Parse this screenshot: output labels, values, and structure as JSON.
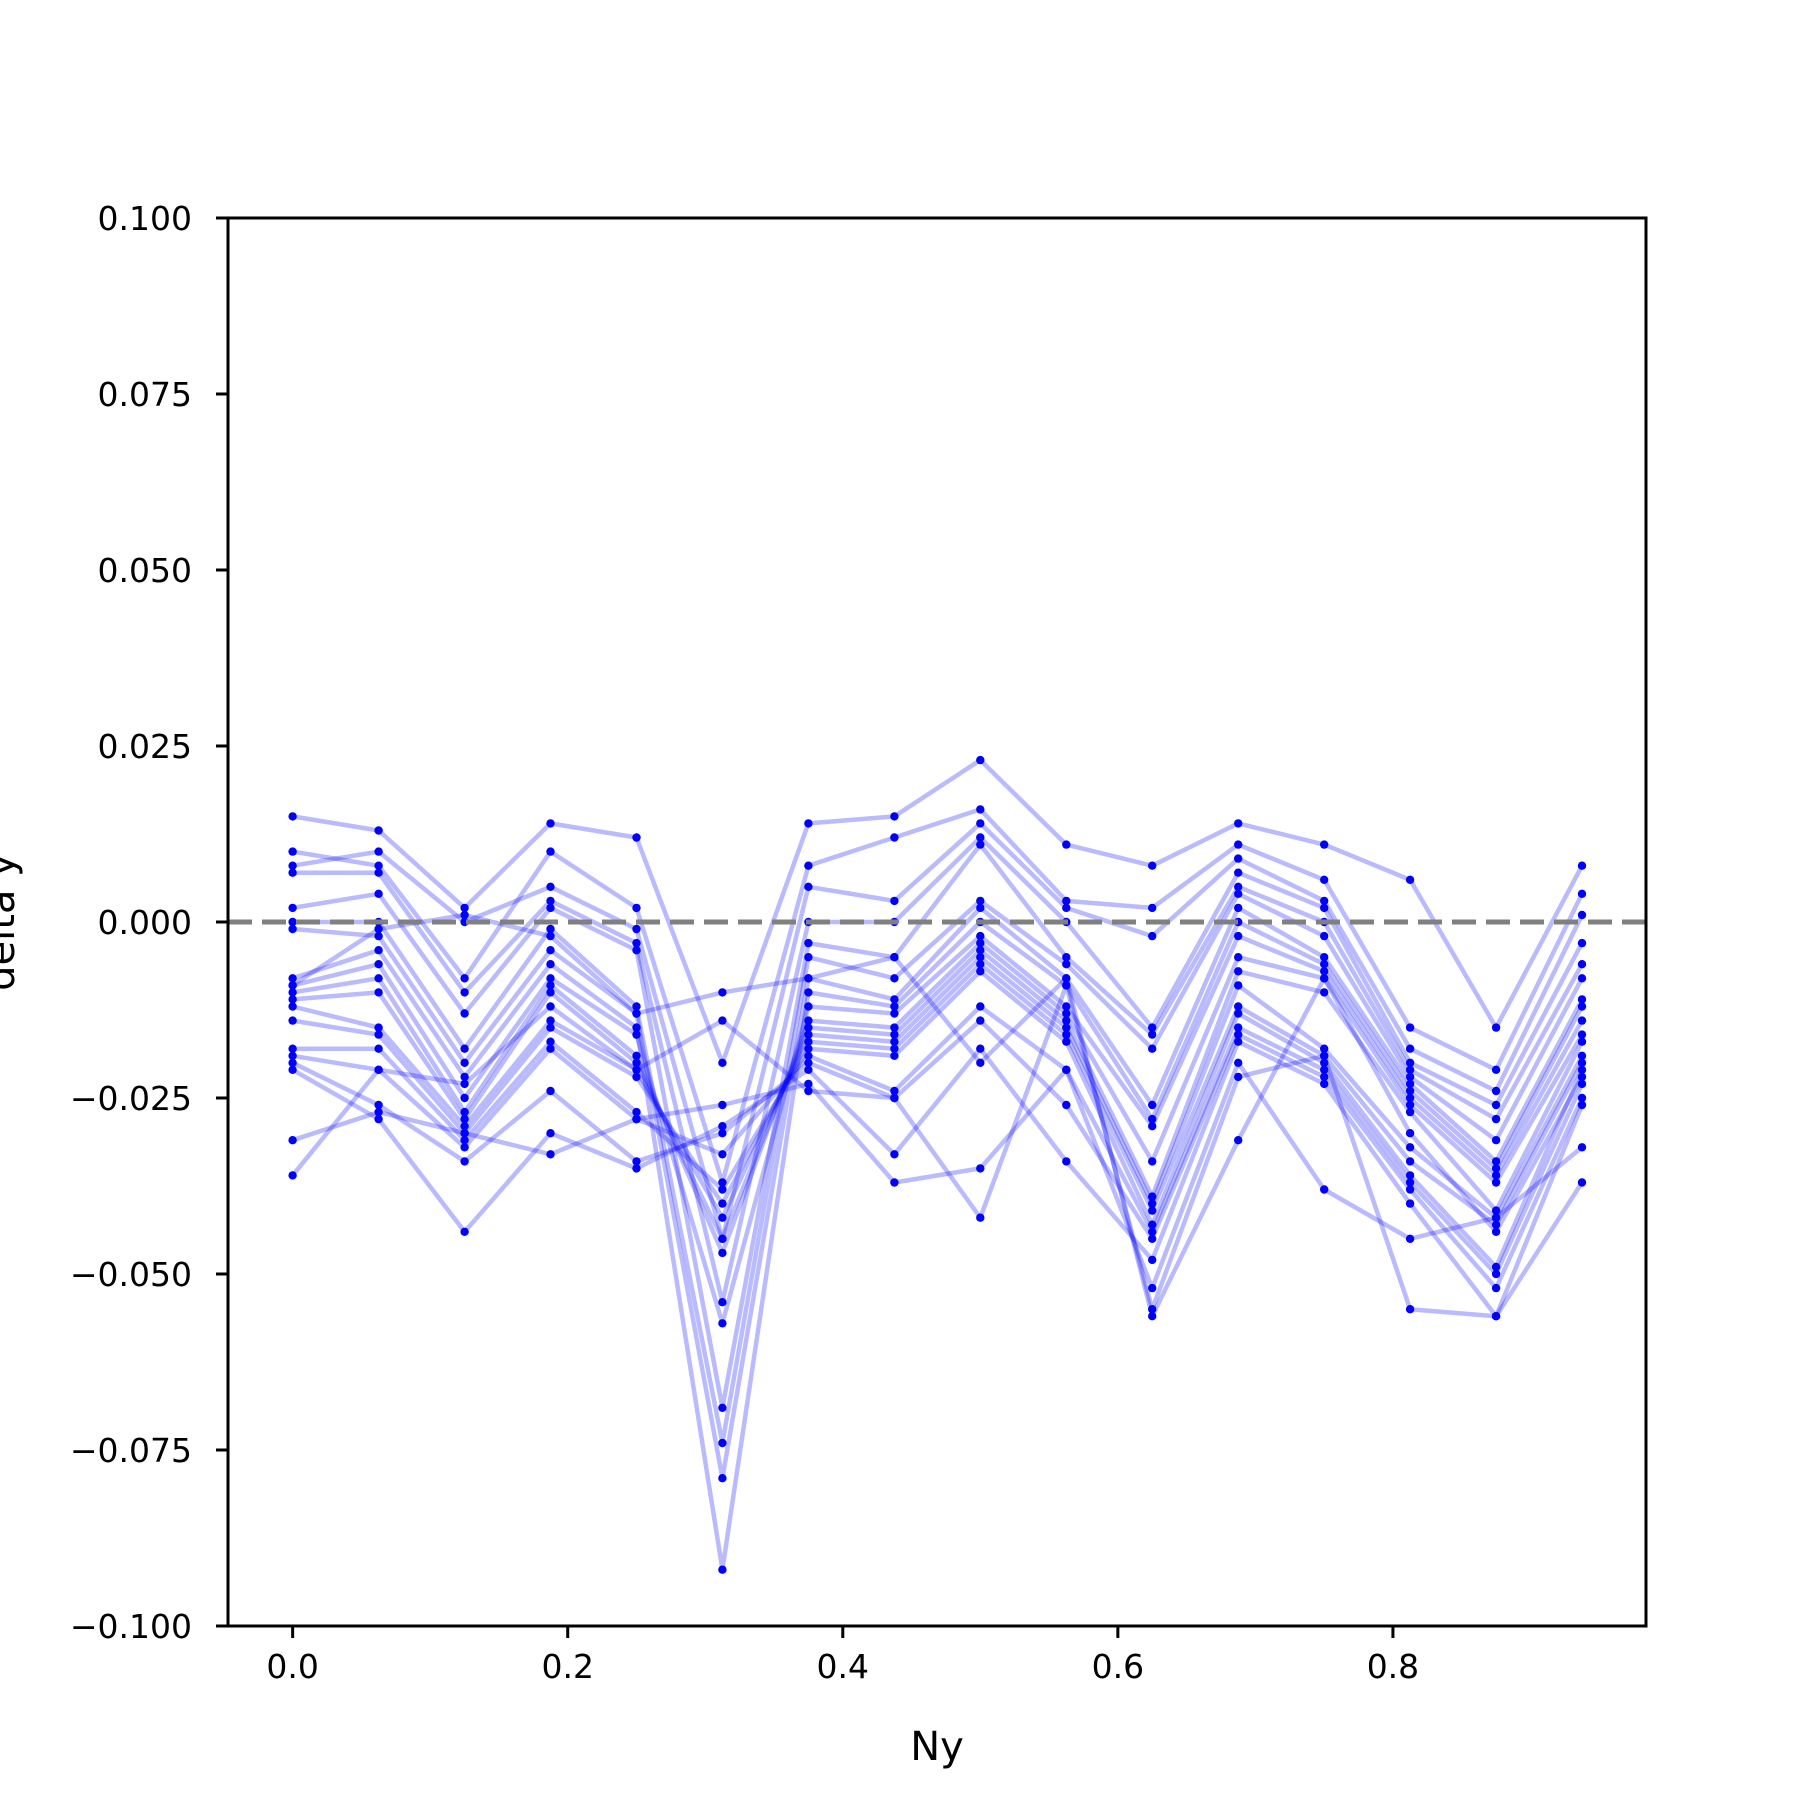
{
  "chart_data": {
    "type": "line",
    "xlabel": "Ny",
    "ylabel": "delta y",
    "xlim": [
      -0.047,
      0.984
    ],
    "ylim": [
      -0.1,
      0.1
    ],
    "xticks": [
      0.0,
      0.2,
      0.4,
      0.6,
      0.8
    ],
    "xtick_labels": [
      "0.0",
      "0.2",
      "0.4",
      "0.6",
      "0.8"
    ],
    "yticks": [
      0.1,
      0.075,
      0.05,
      0.025,
      0.0,
      -0.025,
      -0.05,
      -0.075,
      -0.1
    ],
    "ytick_labels": [
      "0.100",
      "0.075",
      "0.050",
      "0.025",
      "0.000",
      "−0.025",
      "−0.050",
      "−0.075",
      "−0.100"
    ],
    "reference_line": {
      "y": 0.0,
      "style": "dashed",
      "color": "#808080"
    },
    "line_color": "#0000ff",
    "line_alpha": 0.27,
    "x": [
      0.0,
      0.0625,
      0.125,
      0.1875,
      0.25,
      0.3125,
      0.375,
      0.4375,
      0.5,
      0.5625,
      0.625,
      0.6875,
      0.75,
      0.8125,
      0.875,
      0.9375
    ],
    "series": [
      {
        "values": [
          0.015,
          0.013,
          0.002,
          0.014,
          0.012,
          -0.02,
          0.014,
          0.015,
          0.023,
          0.011,
          0.008,
          0.014,
          0.011,
          0.006,
          -0.015,
          0.008
        ]
      },
      {
        "values": [
          0.01,
          0.008,
          -0.008,
          0.01,
          0.002,
          -0.037,
          0.008,
          0.012,
          0.016,
          0.003,
          0.002,
          0.011,
          0.006,
          -0.015,
          -0.021,
          0.004
        ]
      },
      {
        "values": [
          0.008,
          0.01,
          0.0,
          0.005,
          -0.001,
          -0.045,
          0.005,
          0.003,
          0.014,
          0.002,
          -0.002,
          0.009,
          0.003,
          -0.018,
          -0.024,
          0.001
        ]
      },
      {
        "values": [
          0.007,
          0.007,
          -0.01,
          0.003,
          -0.003,
          -0.054,
          0.0,
          0.0,
          0.012,
          0.0,
          -0.015,
          0.007,
          0.002,
          -0.02,
          -0.026,
          -0.003
        ]
      },
      {
        "values": [
          0.002,
          0.004,
          -0.013,
          0.002,
          -0.004,
          -0.069,
          -0.003,
          -0.005,
          0.011,
          -0.005,
          -0.016,
          0.005,
          0.0,
          -0.021,
          -0.028,
          -0.006
        ]
      },
      {
        "values": [
          0.0,
          0.0,
          -0.018,
          -0.001,
          -0.012,
          -0.074,
          -0.005,
          -0.008,
          0.003,
          -0.006,
          -0.018,
          0.004,
          -0.002,
          -0.022,
          -0.031,
          -0.008
        ]
      },
      {
        "values": [
          -0.001,
          -0.002,
          -0.02,
          -0.004,
          -0.013,
          -0.079,
          -0.008,
          -0.011,
          0.002,
          -0.008,
          -0.026,
          0.002,
          -0.005,
          -0.023,
          -0.034,
          -0.011
        ]
      },
      {
        "values": [
          -0.008,
          -0.004,
          -0.022,
          -0.006,
          -0.015,
          -0.092,
          -0.01,
          -0.012,
          0.0,
          -0.009,
          -0.028,
          0.0,
          -0.006,
          -0.024,
          -0.035,
          -0.012
        ]
      },
      {
        "values": [
          -0.009,
          -0.006,
          -0.025,
          -0.008,
          -0.016,
          -0.057,
          -0.012,
          -0.013,
          -0.002,
          -0.012,
          -0.029,
          -0.002,
          -0.007,
          -0.025,
          -0.036,
          -0.014
        ]
      },
      {
        "values": [
          -0.01,
          -0.008,
          -0.027,
          -0.009,
          -0.019,
          -0.047,
          -0.014,
          -0.015,
          -0.003,
          -0.013,
          -0.034,
          -0.005,
          -0.008,
          -0.026,
          -0.037,
          -0.016
        ]
      },
      {
        "values": [
          -0.011,
          -0.01,
          -0.028,
          -0.01,
          -0.02,
          -0.045,
          -0.015,
          -0.016,
          -0.004,
          -0.014,
          -0.039,
          -0.007,
          -0.01,
          -0.027,
          -0.041,
          -0.017
        ]
      },
      {
        "values": [
          -0.012,
          -0.015,
          -0.029,
          -0.014,
          -0.021,
          -0.042,
          -0.016,
          -0.017,
          -0.005,
          -0.015,
          -0.04,
          -0.009,
          -0.018,
          -0.032,
          -0.042,
          -0.019
        ]
      },
      {
        "values": [
          -0.014,
          -0.016,
          -0.03,
          -0.015,
          -0.022,
          -0.04,
          -0.017,
          -0.018,
          -0.006,
          -0.016,
          -0.041,
          -0.012,
          -0.019,
          -0.034,
          -0.043,
          -0.02
        ]
      },
      {
        "values": [
          -0.018,
          -0.018,
          -0.031,
          -0.017,
          -0.027,
          -0.038,
          -0.018,
          -0.019,
          -0.007,
          -0.017,
          -0.043,
          -0.013,
          -0.02,
          -0.036,
          -0.049,
          -0.021
        ]
      },
      {
        "values": [
          -0.019,
          -0.021,
          -0.032,
          -0.018,
          -0.028,
          -0.033,
          -0.019,
          -0.024,
          -0.012,
          -0.021,
          -0.044,
          -0.015,
          -0.021,
          -0.037,
          -0.05,
          -0.023
        ]
      },
      {
        "values": [
          -0.02,
          -0.026,
          -0.034,
          -0.024,
          -0.034,
          -0.03,
          -0.02,
          -0.025,
          -0.014,
          -0.026,
          -0.045,
          -0.016,
          -0.022,
          -0.038,
          -0.052,
          -0.025
        ]
      },
      {
        "values": [
          -0.021,
          -0.028,
          -0.044,
          -0.03,
          -0.035,
          -0.029,
          -0.021,
          -0.033,
          -0.018,
          -0.034,
          -0.048,
          -0.017,
          -0.023,
          -0.04,
          -0.056,
          -0.026
        ]
      },
      {
        "values": [
          -0.031,
          -0.027,
          -0.03,
          -0.033,
          -0.028,
          -0.026,
          -0.023,
          -0.037,
          -0.035,
          -0.021,
          -0.052,
          -0.02,
          -0.038,
          -0.045,
          -0.042,
          -0.032
        ]
      },
      {
        "values": [
          -0.036,
          -0.021,
          -0.023,
          -0.012,
          -0.021,
          -0.014,
          -0.024,
          -0.025,
          -0.042,
          -0.009,
          -0.055,
          -0.022,
          -0.019,
          -0.055,
          -0.056,
          -0.037
        ]
      },
      {
        "values": [
          -0.009,
          -0.001,
          0.001,
          -0.002,
          -0.013,
          -0.01,
          -0.008,
          -0.005,
          -0.02,
          -0.008,
          -0.056,
          -0.031,
          -0.008,
          -0.03,
          -0.044,
          -0.022
        ]
      }
    ]
  }
}
